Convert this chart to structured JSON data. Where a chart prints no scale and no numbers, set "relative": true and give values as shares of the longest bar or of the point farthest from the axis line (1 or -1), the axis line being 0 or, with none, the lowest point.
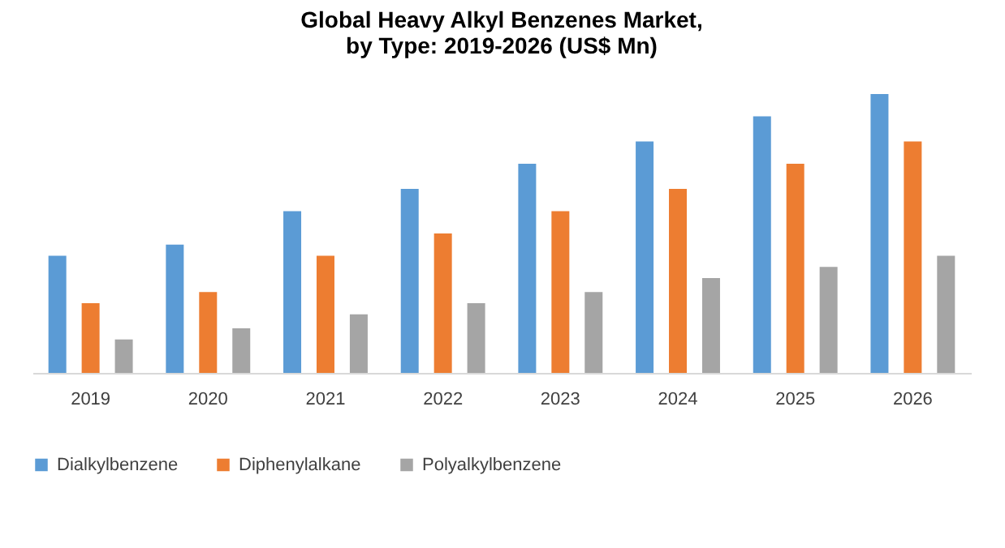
{
  "chart_data": {
    "type": "bar",
    "title": "Global Heavy Alkyl Benzenes Market, by Type: 2019-2026 (US$ Mn)",
    "relative": true,
    "categories": [
      "2019",
      "2020",
      "2021",
      "2022",
      "2023",
      "2024",
      "2025",
      "2026"
    ],
    "series": [
      {
        "name": "Dialkylbenzene",
        "color": "#5b9bd5",
        "values": [
          0.42,
          0.46,
          0.58,
          0.66,
          0.75,
          0.83,
          0.92,
          1
        ]
      },
      {
        "name": "Diphenylalkane",
        "color": "#ed7d31",
        "values": [
          0.25,
          0.29,
          0.42,
          0.5,
          0.58,
          0.66,
          0.75,
          0.83
        ]
      },
      {
        "name": "Polyalkylbenzene",
        "color": "#a5a5a5",
        "values": [
          0.12,
          0.16,
          0.21,
          0.25,
          0.29,
          0.34,
          0.38,
          0.42
        ]
      }
    ],
    "legend": "bottom",
    "grid": false
  }
}
